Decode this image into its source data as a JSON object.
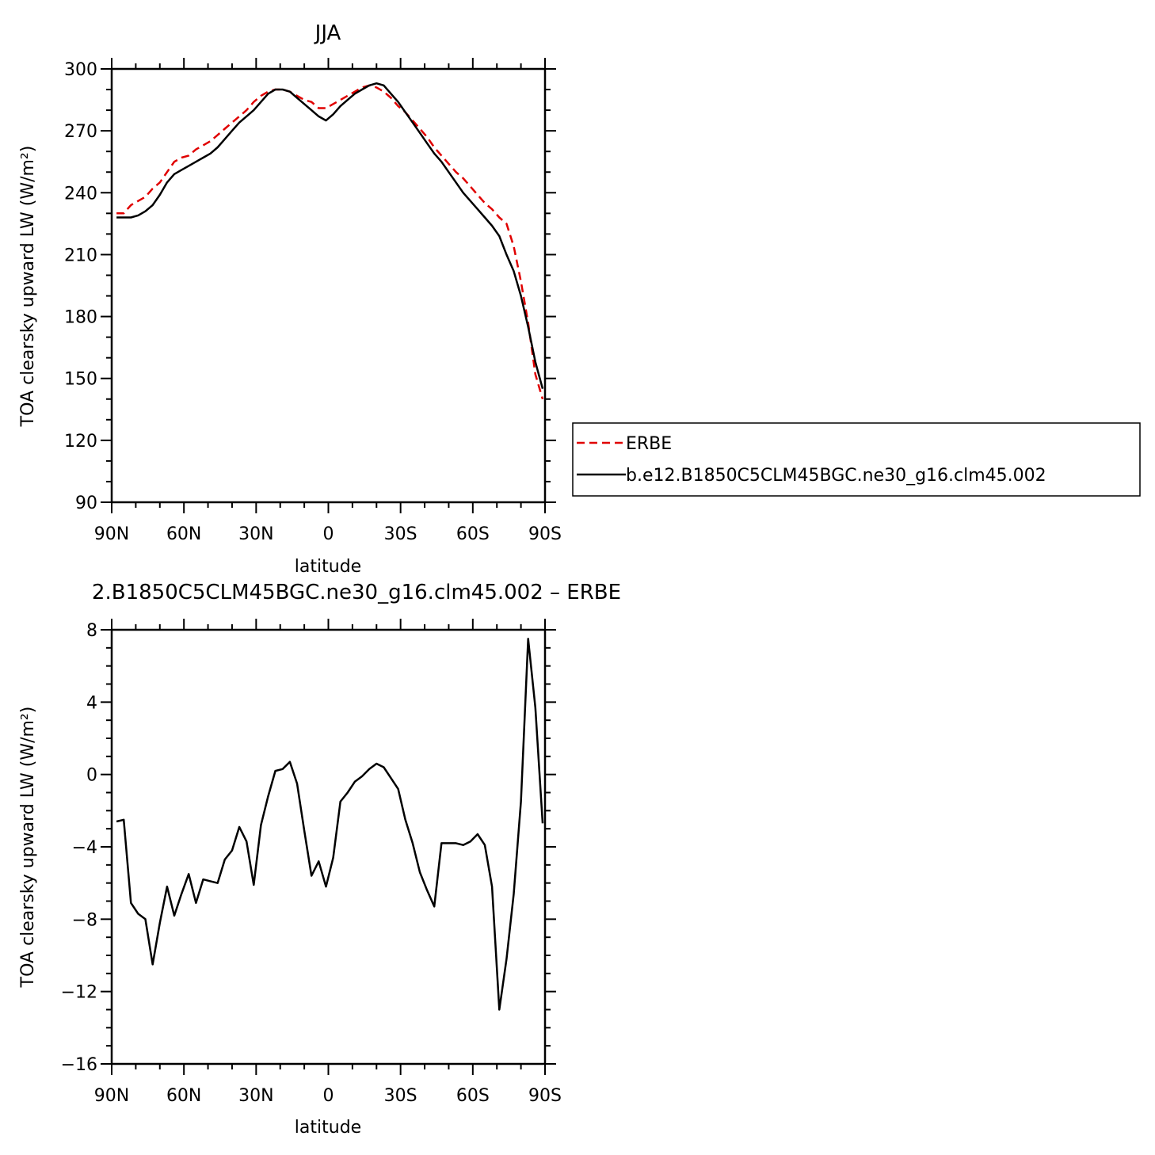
{
  "chart_data": [
    {
      "type": "line",
      "title": "JJA",
      "xlabel": "latitude",
      "ylabel": "TOA clearsky upward LW (W/m²)",
      "xlim": [
        90,
        -90
      ],
      "ylim": [
        90,
        300
      ],
      "xticks": [
        90,
        60,
        30,
        0,
        -30,
        -60,
        -90
      ],
      "xtick_labels": [
        "90N",
        "60N",
        "30N",
        "0",
        "30S",
        "60S",
        "90S"
      ],
      "yticks": [
        90,
        120,
        150,
        180,
        210,
        240,
        270,
        300
      ],
      "ytick_labels": [
        "90",
        "120",
        "150",
        "180",
        "210",
        "240",
        "270",
        "300"
      ],
      "legend_position": "right",
      "series": [
        {
          "name": "ERBE",
          "color": "#e00000",
          "dash": true,
          "x": [
            88,
            85,
            82,
            79,
            76,
            73,
            70,
            67,
            64,
            61,
            58,
            55,
            52,
            49,
            46,
            43,
            40,
            37,
            34,
            31,
            28,
            25,
            22,
            19,
            16,
            13,
            10,
            7,
            4,
            1,
            -2,
            -5,
            -8,
            -11,
            -14,
            -17,
            -20,
            -23,
            -26,
            -29,
            -32,
            -35,
            -38,
            -41,
            -44,
            -47,
            -50,
            -53,
            -56,
            -59,
            -62,
            -65,
            -68,
            -71,
            -74,
            -77,
            -80,
            -83,
            -86,
            -89
          ],
          "y": [
            230,
            230,
            234,
            236,
            238,
            242,
            245,
            250,
            255,
            257,
            258,
            261,
            263,
            265,
            268,
            271,
            274,
            277,
            280,
            284,
            287,
            289,
            290,
            290,
            289,
            287,
            285,
            284,
            281,
            281,
            283,
            285,
            287,
            289,
            291,
            292,
            291,
            289,
            286,
            282,
            279,
            275,
            271,
            267,
            262,
            258,
            254,
            250,
            247,
            243,
            239,
            235,
            232,
            228,
            225,
            214,
            197,
            177,
            152,
            140
          ]
        },
        {
          "name": "b.e12.B1850C5CLM45BGC.ne30_g16.clm45.002",
          "color": "#000000",
          "dash": false,
          "x": [
            88,
            85,
            82,
            79,
            76,
            73,
            70,
            67,
            64,
            61,
            58,
            55,
            52,
            49,
            46,
            43,
            40,
            37,
            34,
            31,
            28,
            25,
            22,
            19,
            16,
            13,
            10,
            7,
            4,
            1,
            -2,
            -5,
            -8,
            -11,
            -14,
            -17,
            -20,
            -23,
            -26,
            -29,
            -32,
            -35,
            -38,
            -41,
            -44,
            -47,
            -50,
            -53,
            -56,
            -59,
            -62,
            -65,
            -68,
            -71,
            -74,
            -77,
            -80,
            -83,
            -86,
            -89
          ],
          "y": [
            228,
            228,
            228,
            229,
            231,
            234,
            239,
            245,
            249,
            251,
            253,
            255,
            257,
            259,
            262,
            266,
            270,
            274,
            277,
            280,
            284,
            288,
            290,
            290,
            289,
            286,
            283,
            280,
            277,
            275,
            278,
            282,
            285,
            288,
            290,
            292,
            293,
            292,
            288,
            284,
            279,
            274,
            269,
            264,
            259,
            255,
            250,
            245,
            240,
            236,
            232,
            228,
            224,
            219,
            210,
            202,
            190,
            175,
            158,
            145
          ]
        }
      ]
    },
    {
      "type": "line",
      "title": "2.B1850C5CLM45BGC.ne30_g16.clm45.002 – ERBE",
      "xlabel": "latitude",
      "ylabel": "TOA clearsky upward LW (W/m²)",
      "xlim": [
        90,
        -90
      ],
      "ylim": [
        -16,
        8
      ],
      "xticks": [
        90,
        60,
        30,
        0,
        -30,
        -60,
        -90
      ],
      "xtick_labels": [
        "90N",
        "60N",
        "30N",
        "0",
        "30S",
        "60S",
        "90S"
      ],
      "yticks": [
        -16,
        -12,
        -8,
        -4,
        0,
        4,
        8
      ],
      "ytick_labels": [
        "−16",
        "−12",
        "−8",
        "−4",
        "0",
        "4",
        "8"
      ],
      "series": [
        {
          "color": "#000000",
          "dash": false,
          "x": [
            88,
            85,
            82,
            79,
            76,
            73,
            70,
            67,
            64,
            61,
            58,
            55,
            52,
            49,
            46,
            43,
            40,
            37,
            34,
            31,
            28,
            25,
            22,
            19,
            16,
            13,
            10,
            7,
            4,
            1,
            -2,
            -5,
            -8,
            -11,
            -14,
            -17,
            -20,
            -23,
            -26,
            -29,
            -32,
            -35,
            -38,
            -41,
            -44,
            -47,
            -50,
            -53,
            -56,
            -59,
            -62,
            -65,
            -68,
            -71,
            -74,
            -77,
            -80,
            -83,
            -86,
            -89
          ],
          "y": [
            -2.6,
            -2.5,
            -7.1,
            -7.7,
            -8.0,
            -10.5,
            -8.2,
            -6.2,
            -7.8,
            -6.6,
            -5.5,
            -7.1,
            -5.8,
            -5.9,
            -6.0,
            -4.7,
            -4.2,
            -2.9,
            -3.7,
            -6.1,
            -2.8,
            -1.2,
            0.2,
            0.3,
            0.7,
            -0.5,
            -3.1,
            -5.6,
            -4.8,
            -6.2,
            -4.6,
            -1.5,
            -1.0,
            -0.4,
            -0.1,
            0.3,
            0.6,
            0.4,
            -0.2,
            -0.8,
            -2.5,
            -3.8,
            -5.4,
            -6.4,
            -7.3,
            -3.8,
            -3.8,
            -3.8,
            -3.9,
            -3.7,
            -3.3,
            -3.9,
            -6.2,
            -13.0,
            -10.2,
            -6.6,
            -1.5,
            7.5,
            3.7,
            -2.7
          ]
        }
      ]
    }
  ]
}
